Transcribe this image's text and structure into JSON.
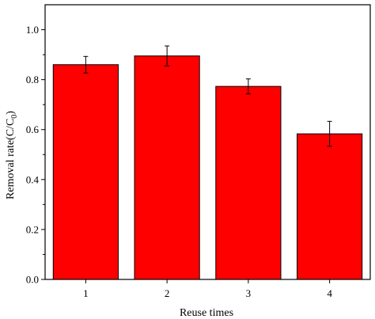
{
  "chart_data": {
    "type": "bar",
    "title": "",
    "xlabel": "Reuse times",
    "ylabel": "Removal rate(C/C",
    "ylabel_subscript": "0",
    "ylabel_close": ")",
    "categories": [
      "1",
      "2",
      "3",
      "4"
    ],
    "values": [
      0.86,
      0.895,
      0.773,
      0.583
    ],
    "errors": [
      0.033,
      0.04,
      0.03,
      0.05
    ],
    "ylim": [
      0,
      1.1
    ],
    "yticks": [
      0.0,
      0.2,
      0.4,
      0.6,
      0.8,
      1.0
    ],
    "ytick_labels": [
      "0.0",
      "0.2",
      "0.4",
      "0.6",
      "0.8",
      "1.0"
    ],
    "grid": false,
    "legend": "none",
    "bar_color": "#ff0000",
    "edge_color": "#000000"
  }
}
